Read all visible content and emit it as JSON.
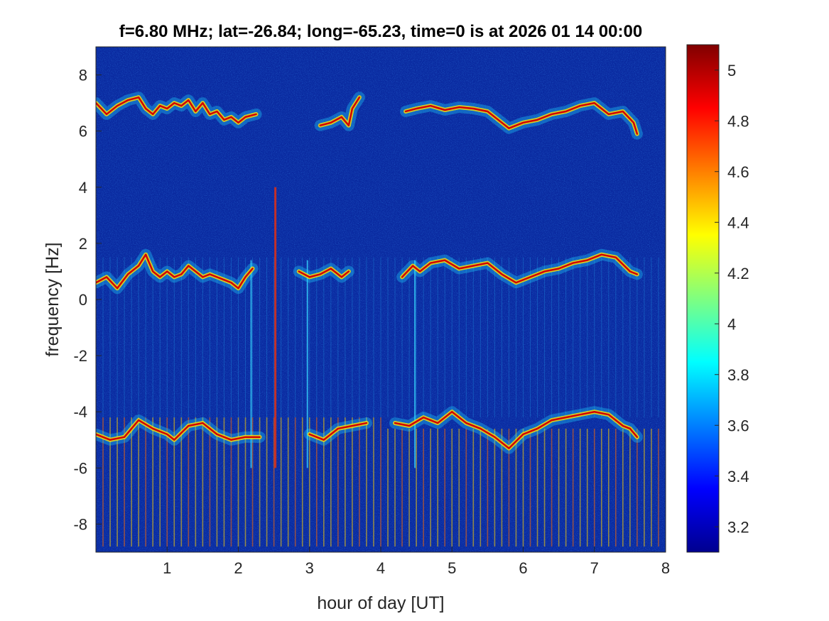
{
  "chart_data": {
    "type": "heatmap",
    "title": "f=6.80 MHz;  lat=-26.84; long=-65.23, time=0 is at 2026 01 14 00:00",
    "xlabel": "hour of day [UT]",
    "ylabel": "frequency [Hz]",
    "xlim": [
      0,
      8
    ],
    "ylim": [
      -9,
      9
    ],
    "xticks": [
      1,
      2,
      3,
      4,
      5,
      6,
      7,
      8
    ],
    "xtick_labels": [
      "1",
      "2",
      "3",
      "4",
      "5",
      "6",
      "7",
      "8"
    ],
    "yticks": [
      8,
      6,
      4,
      2,
      0,
      -2,
      -4,
      -6,
      -8
    ],
    "ytick_labels": [
      "8",
      "6",
      "4",
      "2",
      "0",
      "-2",
      "-4",
      "-6",
      "-8"
    ],
    "colorbar": {
      "colormap": "jet",
      "range": [
        3.1,
        5.1
      ],
      "ticks": [
        5,
        4.8,
        4.6,
        4.4,
        4.2,
        4,
        3.8,
        3.6,
        3.4,
        3.2
      ],
      "tick_labels": [
        "5",
        "4.8",
        "4.6",
        "4.4",
        "4.2",
        "4",
        "3.8",
        "3.6",
        "3.4",
        "3.2"
      ]
    },
    "background_color": "#0a2aa0",
    "traces": [
      {
        "segments": [
          {
            "x": [
              0.0,
              0.15,
              0.3,
              0.45,
              0.6,
              0.7,
              0.8,
              0.9,
              1.0,
              1.1,
              1.2,
              1.3,
              1.4,
              1.5,
              1.6,
              1.7,
              1.8,
              1.9,
              2.0,
              2.1,
              2.25
            ],
            "y": [
              7.0,
              6.6,
              6.9,
              7.1,
              7.2,
              6.8,
              6.6,
              6.9,
              6.8,
              7.0,
              6.9,
              7.1,
              6.7,
              7.0,
              6.6,
              6.7,
              6.4,
              6.5,
              6.3,
              6.5,
              6.6
            ]
          },
          {
            "x": [
              3.15,
              3.3,
              3.45,
              3.55,
              3.6,
              3.7
            ],
            "y": [
              6.2,
              6.3,
              6.5,
              6.2,
              6.8,
              7.2
            ]
          },
          {
            "x": [
              4.35,
              4.5,
              4.7,
              4.9,
              5.1,
              5.3,
              5.5,
              5.7,
              5.8,
              6.0,
              6.2,
              6.4,
              6.6,
              6.8,
              7.0,
              7.2,
              7.4,
              7.55,
              7.6
            ],
            "y": [
              6.7,
              6.8,
              6.9,
              6.75,
              6.85,
              6.8,
              6.7,
              6.3,
              6.1,
              6.3,
              6.4,
              6.6,
              6.7,
              6.9,
              7.0,
              6.6,
              6.7,
              6.3,
              5.9
            ]
          }
        ]
      },
      {
        "segments": [
          {
            "x": [
              0.0,
              0.15,
              0.3,
              0.45,
              0.6,
              0.7,
              0.8,
              0.9,
              1.0,
              1.1,
              1.2,
              1.3,
              1.4,
              1.5,
              1.6,
              1.7,
              1.8,
              1.9,
              2.0,
              2.1,
              2.2
            ],
            "y": [
              0.6,
              0.8,
              0.4,
              0.9,
              1.2,
              1.6,
              1.0,
              0.8,
              1.0,
              0.8,
              0.9,
              1.2,
              1.0,
              0.8,
              0.9,
              0.8,
              0.7,
              0.6,
              0.4,
              0.8,
              1.1
            ]
          },
          {
            "x": [
              2.85,
              3.0,
              3.15,
              3.3,
              3.45,
              3.55
            ],
            "y": [
              1.0,
              0.8,
              0.9,
              1.1,
              0.8,
              1.0
            ]
          },
          {
            "x": [
              4.3,
              4.45,
              4.55,
              4.7,
              4.9,
              5.1,
              5.3,
              5.5,
              5.7,
              5.9,
              6.1,
              6.3,
              6.5,
              6.7,
              6.9,
              7.1,
              7.3,
              7.5,
              7.6
            ],
            "y": [
              0.8,
              1.2,
              1.0,
              1.3,
              1.4,
              1.1,
              1.2,
              1.3,
              0.9,
              0.6,
              0.8,
              1.0,
              1.1,
              1.3,
              1.4,
              1.6,
              1.5,
              1.0,
              0.9
            ]
          }
        ]
      },
      {
        "segments": [
          {
            "x": [
              0.0,
              0.2,
              0.4,
              0.6,
              0.8,
              1.0,
              1.1,
              1.3,
              1.5,
              1.7,
              1.9,
              2.1,
              2.3
            ],
            "y": [
              -4.8,
              -5.0,
              -4.9,
              -4.3,
              -4.6,
              -4.8,
              -5.0,
              -4.5,
              -4.4,
              -4.8,
              -5.0,
              -4.9,
              -4.9
            ]
          },
          {
            "x": [
              3.0,
              3.2,
              3.4,
              3.6,
              3.8
            ],
            "y": [
              -4.8,
              -5.0,
              -4.6,
              -4.5,
              -4.4
            ]
          },
          {
            "x": [
              4.2,
              4.4,
              4.6,
              4.8,
              5.0,
              5.2,
              5.4,
              5.6,
              5.8,
              6.0,
              6.2,
              6.4,
              6.6,
              6.8,
              7.0,
              7.2,
              7.4,
              7.5,
              7.6
            ],
            "y": [
              -4.4,
              -4.5,
              -4.2,
              -4.4,
              -4.0,
              -4.4,
              -4.6,
              -4.9,
              -5.3,
              -4.8,
              -4.6,
              -4.3,
              -4.2,
              -4.1,
              -4.0,
              -4.1,
              -4.5,
              -4.6,
              -4.9
            ]
          }
        ]
      }
    ],
    "vertical_streaks_x": [
      0.1,
      0.2,
      0.3,
      0.4,
      0.5,
      0.6,
      0.7,
      0.8,
      0.9,
      1.0,
      1.1,
      1.2,
      1.3,
      1.4,
      1.5,
      1.6,
      1.7,
      1.8,
      1.9,
      2.0,
      2.1,
      2.2,
      2.3,
      2.4,
      2.5,
      2.6,
      2.7,
      2.8,
      2.9,
      3.0,
      3.1,
      3.2,
      3.3,
      3.4,
      3.5,
      3.6,
      3.7,
      3.8,
      3.9,
      4.0,
      4.1,
      4.2,
      4.3,
      4.4,
      4.5,
      4.6,
      4.7,
      4.8,
      4.9,
      5.0,
      5.1,
      5.2,
      5.3,
      5.4,
      5.5,
      5.6,
      5.7,
      5.8,
      5.9,
      6.0,
      6.1,
      6.2,
      6.3,
      6.4,
      6.5,
      6.6,
      6.7,
      6.8,
      6.9,
      7.0,
      7.1,
      7.2,
      7.3,
      7.4,
      7.5,
      7.6,
      7.7,
      7.8,
      7.9
    ],
    "bright_column_x": [
      2.52,
      2.18,
      2.97,
      4.48
    ]
  }
}
